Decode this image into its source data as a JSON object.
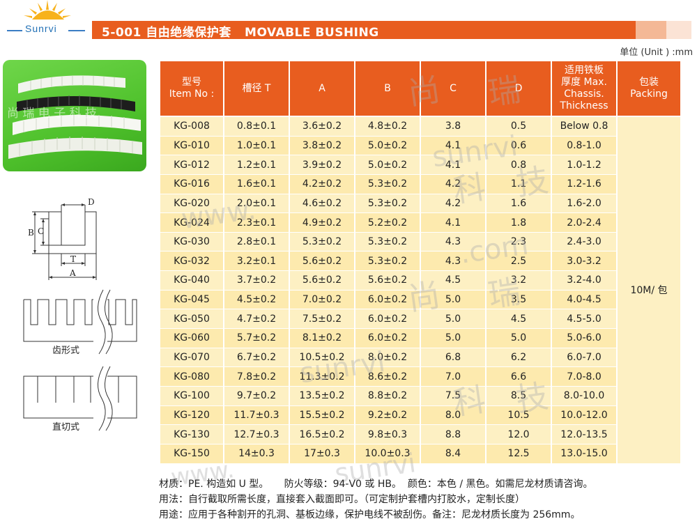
{
  "brand": {
    "logo_text": "Sunrvi"
  },
  "header": {
    "title": "5-001 自由绝缘保护套   MOVABLE BUSHING"
  },
  "unit_label": "单位 (Unit ) :mm",
  "photo": {
    "watermark": "尚 瑞 电 子 科 技"
  },
  "diagram": {
    "labels": {
      "B": "B",
      "C": "C",
      "D": "D",
      "T": "T",
      "A": "A"
    },
    "toothed_caption": "齿形式",
    "straight_caption": "直切式"
  },
  "table": {
    "headers": {
      "item": [
        "型号",
        "Item No :"
      ],
      "t": [
        "槽径 T"
      ],
      "a": [
        "A"
      ],
      "b": [
        "B"
      ],
      "c": [
        "C"
      ],
      "d": [
        "D"
      ],
      "thickness": [
        "适用铁板",
        "厚度 Max.",
        "Chassis.",
        "Thickness"
      ],
      "packing": [
        "包装",
        "Packing"
      ]
    },
    "packing_value": "10M/ 包",
    "rows": [
      [
        "KG-008",
        "0.8±0.1",
        "3.6±0.2",
        "4.8±0.2",
        "3.8",
        "0.5",
        "Below 0.8"
      ],
      [
        "KG-010",
        "1.0±0.1",
        "3.8±0.2",
        "5.0±0.2",
        "4.1",
        "0.6",
        "0.8-1.0"
      ],
      [
        "KG-012",
        "1.2±0.1",
        "3.9±0.2",
        "5.0±0.2",
        "4.1",
        "0.8",
        "1.0-1.2"
      ],
      [
        "KG-016",
        "1.6±0.1",
        "4.2±0.2",
        "5.3±0.2",
        "4.2",
        "1.1",
        "1.2-1.6"
      ],
      [
        "KG-020",
        "2.0±0.1",
        "4.6±0.2",
        "5.3±0.2",
        "4.2",
        "1.6",
        "1.6-2.0"
      ],
      [
        "KG-024",
        "2.3±0.1",
        "4.9±0.2",
        "5.2±0.2",
        "4.1",
        "1.8",
        "2.0-2.4"
      ],
      [
        "KG-030",
        "2.8±0.1",
        "5.3±0.2",
        "5.3±0.2",
        "4.3",
        "2.3",
        "2.4-3.0"
      ],
      [
        "KG-032",
        "3.2±0.1",
        "5.6±0.2",
        "5.3±0.2",
        "4.3",
        "2.5",
        "3.0-3.2"
      ],
      [
        "KG-040",
        "3.7±0.2",
        "5.6±0.2",
        "5.6±0.2",
        "4.5",
        "3.2",
        "3.2-4.0"
      ],
      [
        "KG-045",
        "4.5±0.2",
        "7.0±0.2",
        "6.0±0.2",
        "5.0",
        "3.5",
        "4.0-4.5"
      ],
      [
        "KG-050",
        "4.7±0.2",
        "7.5±0.2",
        "6.0±0.2",
        "5.0",
        "4.5",
        "4.5-5.0"
      ],
      [
        "KG-060",
        "5.7±0.2",
        "8.1±0.2",
        "6.0±0.2",
        "5.0",
        "5.0",
        "5.0-6.0"
      ],
      [
        "KG-070",
        "6.7±0.2",
        "10.5±0.2",
        "8.0±0.2",
        "6.8",
        "6.2",
        "6.0-7.0"
      ],
      [
        "KG-080",
        "7.8±0.2",
        "11.3±0.2",
        "8.6±0.2",
        "7.0",
        "6.6",
        "7.0-8.0"
      ],
      [
        "KG-100",
        "9.7±0.2",
        "13.5±0.2",
        "8.8±0.2",
        "7.5",
        "8.5",
        "8.0-10.0"
      ],
      [
        "KG-120",
        "11.7±0.3",
        "15.5±0.2",
        "9.2±0.2",
        "8.0",
        "10.5",
        "10.0-12.0"
      ],
      [
        "KG-130",
        "12.7±0.3",
        "16.5±0.2",
        "9.8±0.3",
        "8.8",
        "12.0",
        "12.0-13.5"
      ],
      [
        "KG-150",
        "14±0.3",
        "17±0.3",
        "10.0±0.3",
        "8.4",
        "12.5",
        "13.0-15.0"
      ]
    ]
  },
  "watermarks": [
    "尚",
    "瑞",
    "sunrvi",
    "科",
    "技",
    "www.",
    ".com",
    "尚",
    "瑞",
    "sunrvi",
    "科",
    "技",
    "www.",
    "sunrvi"
  ],
  "notes": [
    "材质：PE. 构造如 U 型。     防火等级：94-V0 或 HB。  颜色：本色 / 黑色。如需尼龙材质请咨询。",
    "用法：自行截取所需长度，直接套入截面即可。（可定制护套槽内打胶水，定制长度）",
    "用途：应用于各种割开的孔洞、基板边缘，保护电线不被刮伤。备注：尼龙材质长度为 256mm。"
  ]
}
